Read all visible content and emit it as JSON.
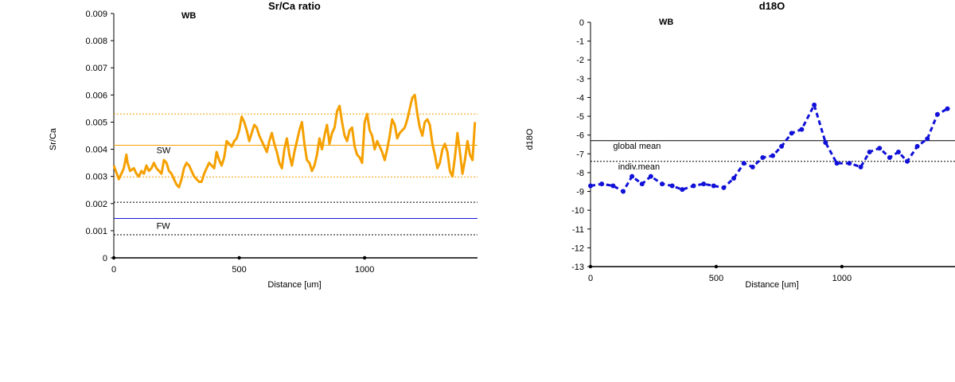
{
  "charts": [
    {
      "site_label": "WB"
    },
    {
      "site_label": "WB"
    }
  ],
  "chart_data": [
    {
      "type": "line",
      "title": "Sr/Ca ratio",
      "xlabel": "Distance [um]",
      "ylabel": "Sr/Ca",
      "xlim": [
        0,
        1450
      ],
      "ylim": [
        0,
        0.009
      ],
      "xticks": [
        "0",
        "500",
        "1000"
      ],
      "yticks": [
        "0",
        "0.001",
        "0.002",
        "0.003",
        "0.004",
        "0.005",
        "0.006",
        "0.007",
        "0.008",
        "0.009"
      ],
      "color": "#f5a000",
      "series": [
        {
          "x": [
            0,
            20,
            30,
            40,
            50,
            55,
            65,
            80,
            90,
            100,
            110,
            120,
            130,
            140,
            150,
            160,
            170,
            180,
            190,
            200,
            210,
            220,
            230,
            240,
            250,
            260,
            270,
            280,
            290,
            300,
            310,
            320,
            330,
            340,
            350,
            360,
            370,
            380,
            390,
            400,
            410,
            420,
            430,
            440,
            450,
            460,
            470,
            480,
            490,
            500,
            510,
            520,
            530,
            540,
            550,
            560,
            570,
            580,
            590,
            600,
            610,
            620,
            630,
            640,
            650,
            660,
            670,
            680,
            690,
            700,
            710,
            720,
            730,
            740,
            750,
            760,
            770,
            780,
            790,
            800,
            810,
            820,
            830,
            840,
            850,
            860,
            870,
            880,
            890,
            900,
            910,
            920,
            930,
            940,
            950,
            960,
            970,
            980,
            990,
            1000,
            1010,
            1020,
            1030,
            1040,
            1050,
            1060,
            1070,
            1080,
            1090,
            1100,
            1110,
            1120,
            1130,
            1140,
            1150,
            1160,
            1170,
            1180,
            1190,
            1200,
            1210,
            1220,
            1230,
            1240,
            1250,
            1260,
            1270,
            1280,
            1290,
            1300,
            1310,
            1320,
            1330,
            1340,
            1350,
            1360,
            1370,
            1380,
            1390,
            1400,
            1410,
            1420,
            1430,
            1440
          ],
          "y": [
            0.0034,
            0.0029,
            0.0031,
            0.0033,
            0.0038,
            0.0035,
            0.0032,
            0.0033,
            0.0031,
            0.003,
            0.0032,
            0.0031,
            0.0034,
            0.0032,
            0.0033,
            0.0035,
            0.0033,
            0.0032,
            0.0031,
            0.0036,
            0.0035,
            0.0032,
            0.0031,
            0.0029,
            0.0027,
            0.0026,
            0.0029,
            0.0033,
            0.0035,
            0.0034,
            0.0032,
            0.003,
            0.0029,
            0.0028,
            0.0028,
            0.0031,
            0.0033,
            0.0035,
            0.0034,
            0.0033,
            0.0039,
            0.0036,
            0.0034,
            0.0037,
            0.0043,
            0.0042,
            0.0041,
            0.0043,
            0.0044,
            0.0047,
            0.0052,
            0.005,
            0.0047,
            0.0043,
            0.0046,
            0.0049,
            0.0048,
            0.0045,
            0.0043,
            0.0041,
            0.0039,
            0.0043,
            0.0046,
            0.0042,
            0.0039,
            0.0035,
            0.0033,
            0.004,
            0.0044,
            0.0038,
            0.0034,
            0.0039,
            0.0043,
            0.0047,
            0.005,
            0.0042,
            0.0036,
            0.0035,
            0.0032,
            0.0034,
            0.0038,
            0.0044,
            0.004,
            0.0045,
            0.0049,
            0.0042,
            0.0046,
            0.0048,
            0.0054,
            0.0056,
            0.005,
            0.0045,
            0.0043,
            0.0047,
            0.0048,
            0.0041,
            0.0038,
            0.0037,
            0.0035,
            0.005,
            0.0053,
            0.0047,
            0.0045,
            0.004,
            0.0043,
            0.0041,
            0.0039,
            0.0036,
            0.004,
            0.0045,
            0.0051,
            0.0049,
            0.0044,
            0.0046,
            0.0047,
            0.0048,
            0.0051,
            0.0055,
            0.0059,
            0.006,
            0.0053,
            0.0048,
            0.0045,
            0.005,
            0.0051,
            0.0049,
            0.0042,
            0.0038,
            0.0033,
            0.0035,
            0.004,
            0.0042,
            0.0039,
            0.0032,
            0.003,
            0.0037,
            0.0046,
            0.0039,
            0.0031,
            0.0036,
            0.0043,
            0.0038,
            0.0036,
            0.005
          ],
          "width": 3
        }
      ],
      "hlines": [
        {
          "y": 0.0053,
          "color": "#f5a000",
          "dash": true
        },
        {
          "y": 0.00415,
          "color": "#f5a000",
          "dash": false,
          "label": "SW",
          "label_x": 170
        },
        {
          "y": 0.00298,
          "color": "#f5a000",
          "dash": true
        },
        {
          "y": 0.00205,
          "color": "#000000",
          "dash": true
        },
        {
          "y": 0.00145,
          "color": "#1a1adb",
          "dash": false,
          "label": "FW",
          "label_x": 170
        },
        {
          "y": 0.00085,
          "color": "#000000",
          "dash": true
        }
      ]
    },
    {
      "type": "line",
      "title": "d18O",
      "xlabel": "Distance [um]",
      "ylabel": "d18O",
      "xlim": [
        0,
        1450
      ],
      "ylim": [
        -13,
        0
      ],
      "xticks": [
        "0",
        "500",
        "1000"
      ],
      "yticks": [
        "0",
        "-1",
        "-2",
        "-3",
        "-4",
        "-5",
        "-6",
        "-7",
        "-8",
        "-9",
        "-10",
        "-11",
        "-12",
        "-13"
      ],
      "color": "#1010d8",
      "series": [
        {
          "x": [
            0,
            45,
            90,
            130,
            165,
            205,
            240,
            285,
            325,
            365,
            410,
            450,
            490,
            530,
            570,
            610,
            645,
            685,
            725,
            760,
            800,
            840,
            890,
            935,
            980,
            1030,
            1075,
            1110,
            1150,
            1190,
            1225,
            1260,
            1300,
            1340,
            1380,
            1420
          ],
          "y": [
            -8.7,
            -8.6,
            -8.7,
            -9.0,
            -8.2,
            -8.6,
            -8.2,
            -8.6,
            -8.7,
            -8.9,
            -8.7,
            -8.6,
            -8.7,
            -8.8,
            -8.3,
            -7.5,
            -7.7,
            -7.2,
            -7.1,
            -6.6,
            -5.9,
            -5.7,
            -4.4,
            -6.4,
            -7.5,
            -7.5,
            -7.7,
            -6.9,
            -6.7,
            -7.2,
            -6.9,
            -7.4,
            -6.6,
            -6.2,
            -4.9,
            -4.6
          ],
          "width": 3
        }
      ],
      "hlines": [
        {
          "y": -6.3,
          "color": "#000000",
          "dash": false,
          "label": "global mean",
          "label_x": 90
        },
        {
          "y": -7.4,
          "color": "#000000",
          "dash": true,
          "label": "indiv.mean",
          "label_x": 110
        }
      ]
    }
  ]
}
